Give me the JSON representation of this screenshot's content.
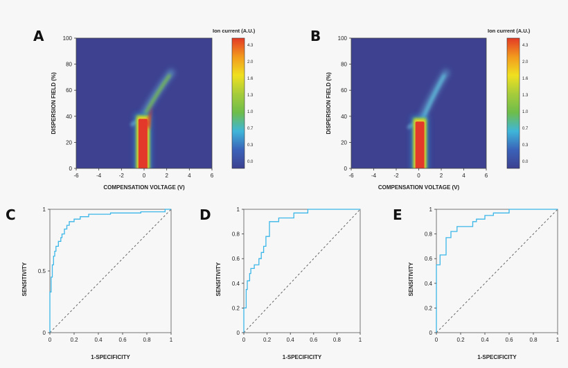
{
  "panels": {
    "A": "A",
    "B": "B",
    "C": "C",
    "D": "D",
    "E": "E"
  },
  "colors": {
    "heatmap_bg": "#3d4190",
    "roc_line": "#3ab6e8",
    "diagonal": "#555555",
    "colorscale": [
      "#3d4190",
      "#3a62b8",
      "#3fb6d9",
      "#6ebd4a",
      "#a6cc3b",
      "#f0e020",
      "#f29a1e",
      "#e33a25"
    ]
  },
  "chart_data": [
    {
      "id": "A",
      "type": "heatmap",
      "xlabel": "COMPENSATION VOLTAGE (V)",
      "ylabel": "DISPERSION FIELD (%)",
      "xlim": [
        -6,
        6
      ],
      "ylim": [
        0,
        100
      ],
      "xticks": [
        -6,
        -4,
        -2,
        0,
        2,
        4,
        6
      ],
      "yticks": [
        0,
        20,
        40,
        60,
        80,
        100
      ],
      "colorbar": {
        "title": "Ion current (A.U.)",
        "ticks": [
          "4.3",
          "2.0",
          "1.6",
          "1.3",
          "1.0",
          "0.7",
          "0.3",
          "0.0"
        ]
      },
      "peaks": [
        {
          "name": "red_column",
          "x": -0.1,
          "y0": 0,
          "y1": 38,
          "width": 0.8,
          "level": 4.3
        },
        {
          "name": "upper_branch",
          "x_start": 0.3,
          "y_start": 45,
          "x_end": 2.3,
          "y_end": 72,
          "level": 1.0
        }
      ]
    },
    {
      "id": "B",
      "type": "heatmap",
      "xlabel": "COMPENSATION VOLTAGE (V)",
      "ylabel": "DISPERSION FIELD (%)",
      "xlim": [
        -6,
        6
      ],
      "ylim": [
        0,
        100
      ],
      "xticks": [
        -6,
        -4,
        -2,
        0,
        2,
        4,
        6
      ],
      "yticks": [
        0,
        20,
        40,
        60,
        80,
        100
      ],
      "colorbar": {
        "title": "Ion current (A.U.)",
        "ticks": [
          "4.3",
          "2.0",
          "1.6",
          "1.3",
          "1.0",
          "0.7",
          "0.3",
          "0.0"
        ]
      },
      "peaks": [
        {
          "name": "red_column",
          "x": 0.1,
          "y0": 0,
          "y1": 36,
          "width": 0.8,
          "level": 4.3
        },
        {
          "name": "upper_branch",
          "x_start": 0.5,
          "y_start": 40,
          "x_end": 2.3,
          "y_end": 72,
          "level": 0.3
        }
      ]
    },
    {
      "id": "C",
      "type": "line",
      "xlabel": "1-SPECIFICITY",
      "ylabel": "SENSITIVITY",
      "xlim": [
        0,
        1
      ],
      "ylim": [
        0,
        1
      ],
      "xticks": [
        "0",
        "0.2",
        "0.4",
        "0.6",
        "0.8",
        "1"
      ],
      "yticks": [
        "0",
        "0.5",
        "1"
      ],
      "roc": [
        [
          0,
          0
        ],
        [
          0,
          0.33
        ],
        [
          0.01,
          0.33
        ],
        [
          0.01,
          0.45
        ],
        [
          0.02,
          0.45
        ],
        [
          0.02,
          0.55
        ],
        [
          0.03,
          0.55
        ],
        [
          0.03,
          0.62
        ],
        [
          0.04,
          0.62
        ],
        [
          0.04,
          0.66
        ],
        [
          0.05,
          0.66
        ],
        [
          0.05,
          0.7
        ],
        [
          0.07,
          0.7
        ],
        [
          0.07,
          0.74
        ],
        [
          0.09,
          0.74
        ],
        [
          0.09,
          0.77
        ],
        [
          0.1,
          0.77
        ],
        [
          0.1,
          0.8
        ],
        [
          0.12,
          0.8
        ],
        [
          0.12,
          0.84
        ],
        [
          0.14,
          0.84
        ],
        [
          0.14,
          0.87
        ],
        [
          0.16,
          0.87
        ],
        [
          0.16,
          0.9
        ],
        [
          0.2,
          0.9
        ],
        [
          0.2,
          0.92
        ],
        [
          0.25,
          0.92
        ],
        [
          0.25,
          0.94
        ],
        [
          0.32,
          0.94
        ],
        [
          0.32,
          0.96
        ],
        [
          0.5,
          0.96
        ],
        [
          0.5,
          0.97
        ],
        [
          0.75,
          0.97
        ],
        [
          0.75,
          0.98
        ],
        [
          0.95,
          0.98
        ],
        [
          0.95,
          1
        ],
        [
          1,
          1
        ]
      ]
    },
    {
      "id": "D",
      "type": "line",
      "xlabel": "1-SPECIFICITY",
      "ylabel": "SENSITIVITY",
      "xlim": [
        0,
        1
      ],
      "ylim": [
        0,
        1
      ],
      "xticks": [
        "0",
        "0.2",
        "0.4",
        "0.6",
        "0.8",
        "1"
      ],
      "yticks": [
        "0",
        "0.2",
        "0.4",
        "0.6",
        "0.8",
        "1"
      ],
      "roc": [
        [
          0,
          0
        ],
        [
          0,
          0.2
        ],
        [
          0.02,
          0.2
        ],
        [
          0.02,
          0.35
        ],
        [
          0.03,
          0.35
        ],
        [
          0.03,
          0.42
        ],
        [
          0.05,
          0.42
        ],
        [
          0.05,
          0.48
        ],
        [
          0.06,
          0.48
        ],
        [
          0.06,
          0.52
        ],
        [
          0.09,
          0.52
        ],
        [
          0.09,
          0.55
        ],
        [
          0.13,
          0.55
        ],
        [
          0.13,
          0.6
        ],
        [
          0.15,
          0.6
        ],
        [
          0.15,
          0.65
        ],
        [
          0.17,
          0.65
        ],
        [
          0.17,
          0.7
        ],
        [
          0.19,
          0.7
        ],
        [
          0.19,
          0.78
        ],
        [
          0.22,
          0.78
        ],
        [
          0.22,
          0.9
        ],
        [
          0.3,
          0.9
        ],
        [
          0.3,
          0.93
        ],
        [
          0.43,
          0.93
        ],
        [
          0.43,
          0.97
        ],
        [
          0.55,
          0.97
        ],
        [
          0.55,
          1
        ],
        [
          1,
          1
        ]
      ]
    },
    {
      "id": "E",
      "type": "line",
      "xlabel": "1-SPECIFICITY",
      "ylabel": "SENSITIVITY",
      "xlim": [
        0,
        1
      ],
      "ylim": [
        0,
        1
      ],
      "xticks": [
        "0",
        "0.2",
        "0.4",
        "0.6",
        "0.8",
        "1"
      ],
      "yticks": [
        "0",
        "0.2",
        "0.4",
        "0.6",
        "0.8",
        "1"
      ],
      "roc": [
        [
          0,
          0
        ],
        [
          0,
          0.55
        ],
        [
          0.03,
          0.55
        ],
        [
          0.03,
          0.63
        ],
        [
          0.08,
          0.63
        ],
        [
          0.08,
          0.77
        ],
        [
          0.12,
          0.77
        ],
        [
          0.12,
          0.82
        ],
        [
          0.17,
          0.82
        ],
        [
          0.17,
          0.86
        ],
        [
          0.3,
          0.86
        ],
        [
          0.3,
          0.9
        ],
        [
          0.33,
          0.9
        ],
        [
          0.33,
          0.92
        ],
        [
          0.4,
          0.92
        ],
        [
          0.4,
          0.95
        ],
        [
          0.47,
          0.95
        ],
        [
          0.47,
          0.97
        ],
        [
          0.6,
          0.97
        ],
        [
          0.6,
          1
        ],
        [
          1,
          1
        ]
      ]
    }
  ]
}
